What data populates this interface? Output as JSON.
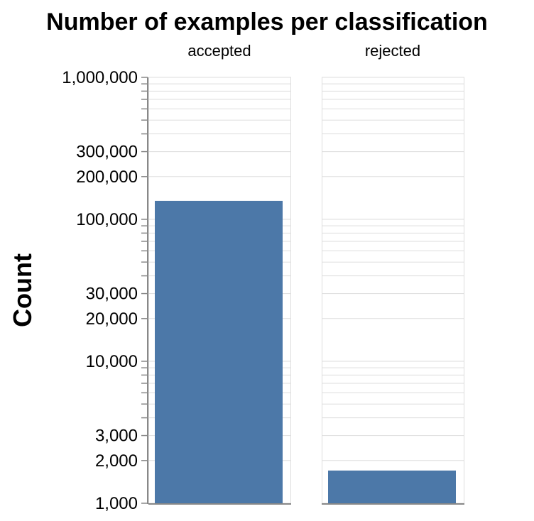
{
  "chart_data": {
    "type": "bar",
    "title": "Number of examples per classification",
    "ylabel": "Count",
    "xlabel": "",
    "yscale": "log",
    "ylim": [
      1000,
      1000000
    ],
    "grid": true,
    "facets": [
      "accepted",
      "rejected"
    ],
    "values": [
      135000,
      1700
    ],
    "ytick_labels": [
      {
        "value": 1000000,
        "label": "1,000,000"
      },
      {
        "value": 300000,
        "label": "300,000"
      },
      {
        "value": 200000,
        "label": "200,000"
      },
      {
        "value": 100000,
        "label": "100,000"
      },
      {
        "value": 30000,
        "label": "30,000"
      },
      {
        "value": 20000,
        "label": "20,000"
      },
      {
        "value": 10000,
        "label": "10,000"
      },
      {
        "value": 3000,
        "label": "3,000"
      },
      {
        "value": 2000,
        "label": "2,000"
      },
      {
        "value": 1000,
        "label": "1,000"
      }
    ],
    "bar_color": "#4c78a8"
  }
}
